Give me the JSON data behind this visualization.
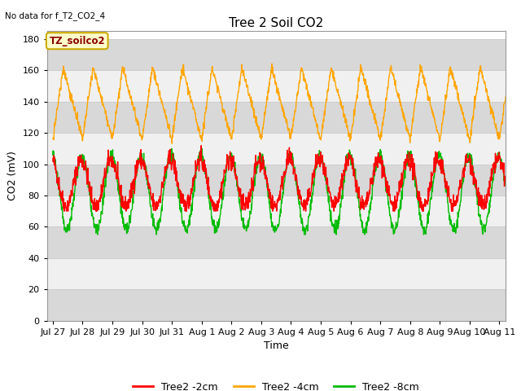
{
  "title": "Tree 2 Soil CO2",
  "no_data_text": "No data for f_T2_CO2_4",
  "ylabel": "CO2 (mV)",
  "xlabel": "Time",
  "ylim": [
    0,
    185
  ],
  "yticks": [
    0,
    20,
    40,
    60,
    80,
    100,
    120,
    140,
    160,
    180
  ],
  "xtick_labels": [
    "Jul 27",
    "Jul 28",
    "Jul 29",
    "Jul 30",
    "Jul 31",
    "Aug 1",
    "Aug 2",
    "Aug 3",
    "Aug 4",
    "Aug 5",
    "Aug 6",
    "Aug 7",
    "Aug 8",
    "Aug 9",
    "Aug 10",
    "Aug 11"
  ],
  "legend_labels": [
    "Tree2 -2cm",
    "Tree2 -4cm",
    "Tree2 -8cm"
  ],
  "legend_colors": [
    "#ff0000",
    "#ffa500",
    "#00bb00"
  ],
  "line_colors": {
    "2cm": "#ff0000",
    "4cm": "#ffa500",
    "8cm": "#00bb00"
  },
  "annotation_box": "TZ_soilco2",
  "annotation_box_bg": "#ffffcc",
  "annotation_box_border": "#ccaa00",
  "bg_color": "#ffffff",
  "plot_bg_light": "#f0f0f0",
  "plot_bg_dark": "#d8d8d8",
  "grid_color": "#cccccc",
  "title_fontsize": 11,
  "label_fontsize": 9,
  "tick_fontsize": 8,
  "legend_fontsize": 9
}
